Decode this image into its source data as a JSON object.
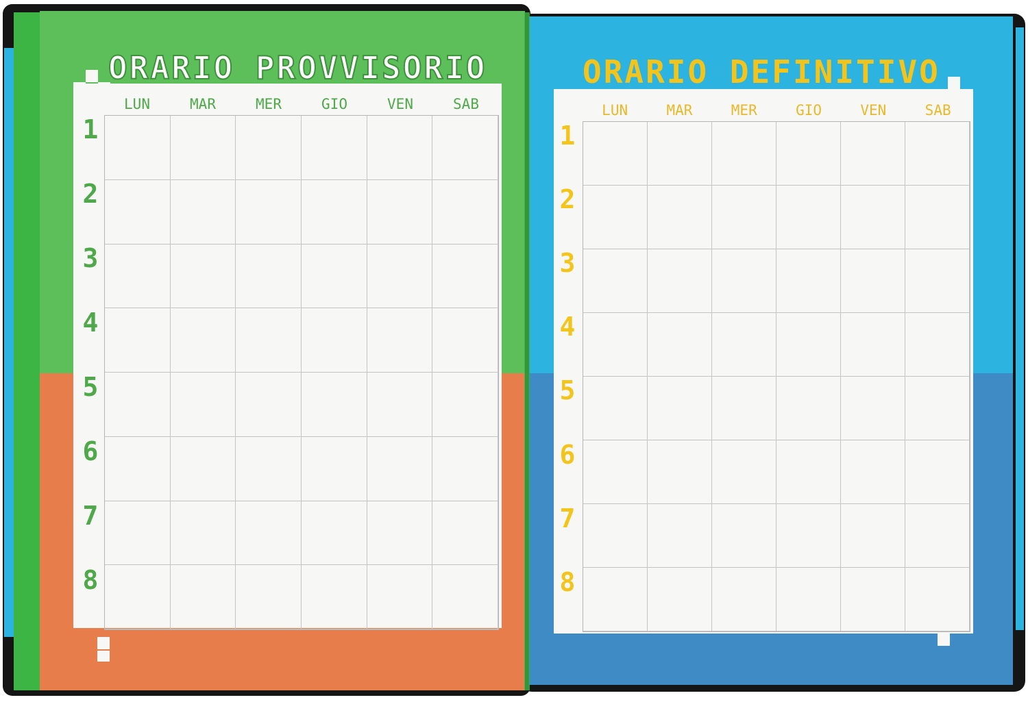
{
  "colors": {
    "green": "#5cbf5a",
    "orange": "#e67d4a",
    "cyan": "#2cb3df",
    "blue": "#3f8bc6",
    "title_yellow": "#f2c41c",
    "label_green": "#4fa84a"
  },
  "left_page": {
    "title": "ORARIO PROVVISORIO",
    "days": [
      "LUN",
      "MAR",
      "MER",
      "GIO",
      "VEN",
      "SAB"
    ],
    "periods": [
      "1",
      "2",
      "3",
      "4",
      "5",
      "6",
      "7",
      "8"
    ]
  },
  "right_page": {
    "title": "ORARIO DEFINITIVO",
    "days": [
      "LUN",
      "MAR",
      "MER",
      "GIO",
      "VEN",
      "SAB"
    ],
    "periods": [
      "1",
      "2",
      "3",
      "4",
      "5",
      "6",
      "7",
      "8"
    ]
  }
}
